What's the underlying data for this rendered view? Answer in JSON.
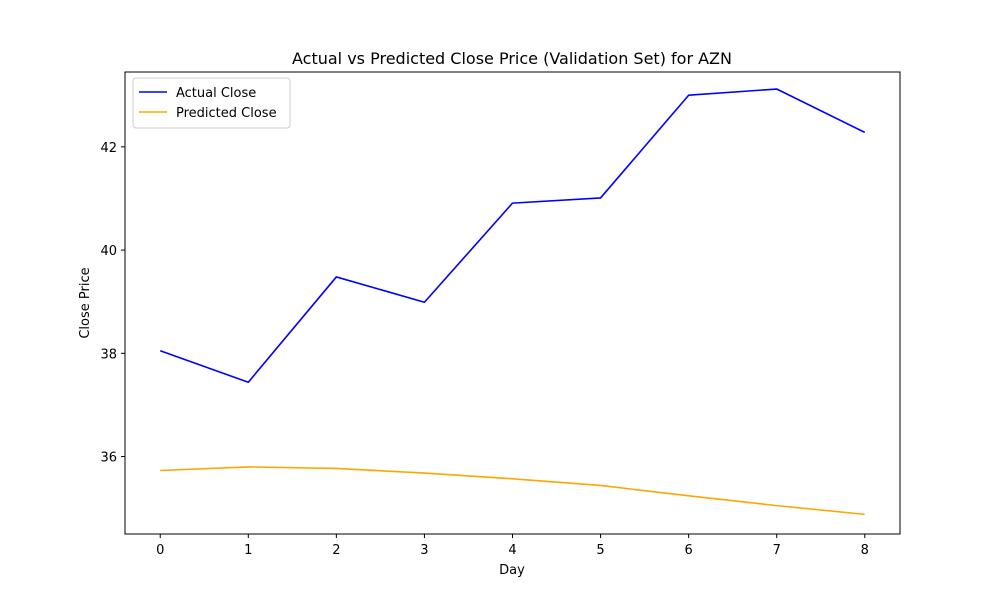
{
  "chart_data": {
    "type": "line",
    "title": "Actual vs Predicted Close Price (Validation Set) for AZN",
    "xlabel": "Day",
    "ylabel": "Close Price",
    "x": [
      0,
      1,
      2,
      3,
      4,
      5,
      6,
      7,
      8
    ],
    "xlim": [
      -0.4,
      8.4
    ],
    "ylim": [
      34.5,
      43.45
    ],
    "xticks": [
      0,
      1,
      2,
      3,
      4,
      5,
      6,
      7,
      8
    ],
    "yticks": [
      36,
      38,
      40,
      42
    ],
    "grid": false,
    "legend_position": "top-left",
    "series": [
      {
        "name": "Actual Close",
        "color": "#0000ff",
        "values": [
          38.05,
          37.44,
          39.48,
          38.99,
          40.91,
          41.01,
          43.0,
          43.12,
          42.28
        ]
      },
      {
        "name": "Predicted Close",
        "color": "#ffa500",
        "values": [
          35.73,
          35.8,
          35.77,
          35.68,
          35.57,
          35.44,
          35.24,
          35.05,
          34.88
        ]
      }
    ]
  }
}
